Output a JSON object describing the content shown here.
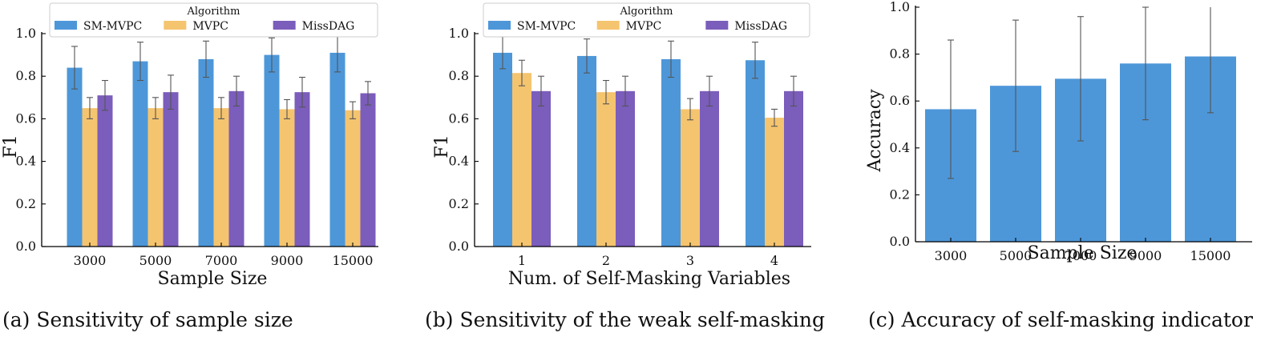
{
  "colors": {
    "SM-MVPC": "#4d97d9",
    "MVPC": "#f5c46f",
    "MissDAG": "#7b5dbb"
  },
  "chart_data": [
    {
      "id": "a",
      "type": "bar",
      "caption": "(a) Sensitivity of sample size",
      "xlabel": "Sample Size",
      "ylabel": "F1",
      "ylim": [
        0,
        1.0
      ],
      "yticks": [
        "0.0",
        "0.2",
        "0.4",
        "0.6",
        "0.8",
        "1.0"
      ],
      "categories": [
        "3000",
        "5000",
        "7000",
        "9000",
        "15000"
      ],
      "legend_title": "Algorithm",
      "series": [
        {
          "name": "SM-MVPC",
          "values": [
            0.84,
            0.87,
            0.88,
            0.9,
            0.91
          ],
          "errors": [
            0.1,
            0.09,
            0.085,
            0.08,
            0.09
          ]
        },
        {
          "name": "MVPC",
          "values": [
            0.65,
            0.65,
            0.65,
            0.645,
            0.64
          ],
          "errors": [
            0.05,
            0.05,
            0.05,
            0.045,
            0.04
          ]
        },
        {
          "name": "MissDAG",
          "values": [
            0.71,
            0.725,
            0.73,
            0.725,
            0.72
          ],
          "errors": [
            0.07,
            0.08,
            0.07,
            0.07,
            0.055
          ]
        }
      ]
    },
    {
      "id": "b",
      "type": "bar",
      "caption": "(b) Sensitivity of the weak self-masking",
      "xlabel": "Num. of Self-Masking Variables",
      "ylabel": "F1",
      "ylim": [
        0,
        1.0
      ],
      "yticks": [
        "0.0",
        "0.2",
        "0.4",
        "0.6",
        "0.8",
        "1.0"
      ],
      "categories": [
        "1",
        "2",
        "3",
        "4"
      ],
      "legend_title": "Algorithm",
      "series": [
        {
          "name": "SM-MVPC",
          "values": [
            0.91,
            0.895,
            0.88,
            0.875
          ],
          "errors": [
            0.075,
            0.08,
            0.085,
            0.085
          ]
        },
        {
          "name": "MVPC",
          "values": [
            0.815,
            0.725,
            0.645,
            0.605
          ],
          "errors": [
            0.06,
            0.055,
            0.05,
            0.04
          ]
        },
        {
          "name": "MissDAG",
          "values": [
            0.73,
            0.73,
            0.73,
            0.73
          ],
          "errors": [
            0.07,
            0.07,
            0.07,
            0.07
          ]
        }
      ]
    },
    {
      "id": "c",
      "type": "bar",
      "caption": "(c) Accuracy of self-masking indicator",
      "xlabel": "Sample Size",
      "ylabel": "Accuracy",
      "ylim": [
        0,
        1.0
      ],
      "yticks": [
        "0.0",
        "0.2",
        "0.4",
        "0.6",
        "0.8",
        "1.0"
      ],
      "categories": [
        "3000",
        "5000",
        "7000",
        "9000",
        "15000"
      ],
      "series": [
        {
          "name": "Accuracy",
          "values": [
            0.565,
            0.665,
            0.695,
            0.76,
            0.79
          ],
          "errors": [
            0.295,
            0.28,
            0.265,
            0.24,
            0.24
          ]
        }
      ]
    }
  ]
}
